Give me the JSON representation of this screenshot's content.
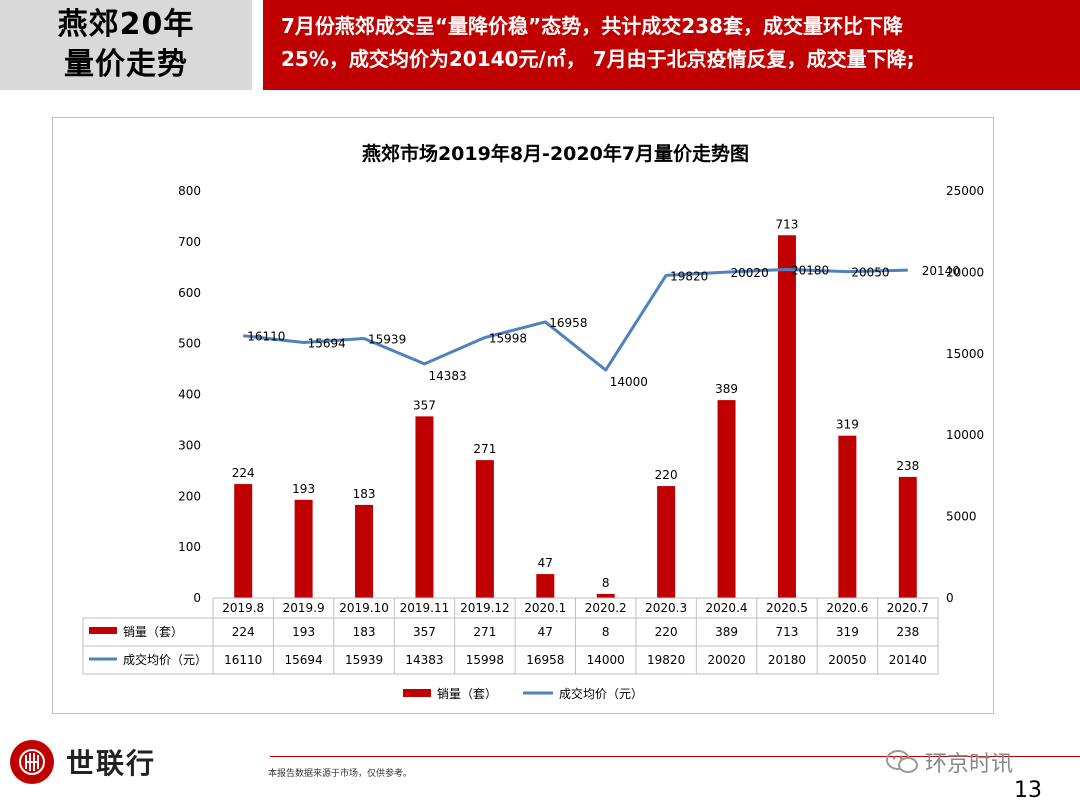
{
  "header": {
    "title_line1": "燕郊20年",
    "title_line2": "量价走势",
    "headline_line1": "7月份燕郊成交呈“量降价稳”态势，共计成交238套，成交量环比下降",
    "headline_line2": "25%，成交均价为20140元/㎡， 7月由于北京疫情反复，成交量下降;"
  },
  "colors": {
    "bar": "#c00000",
    "line": "#4f81bd",
    "accent": "#c00000"
  },
  "chart_data": {
    "type": "bar",
    "title": "燕郊市场2019年8月-2020年7月量价走势图",
    "categories": [
      "2019.8",
      "2019.9",
      "2019.10",
      "2019.11",
      "2019.12",
      "2020.1",
      "2020.2",
      "2020.3",
      "2020.4",
      "2020.5",
      "2020.6",
      "2020.7"
    ],
    "series": [
      {
        "name": "销量（套）",
        "type": "bar",
        "axis": "left",
        "values": [
          224,
          193,
          183,
          357,
          271,
          47,
          8,
          220,
          389,
          713,
          319,
          238
        ]
      },
      {
        "name": "成交均价（元）",
        "type": "line",
        "axis": "right",
        "values": [
          16110,
          15694,
          15939,
          14383,
          15998,
          16958,
          14000,
          19820,
          20020,
          20180,
          20050,
          20140
        ]
      }
    ],
    "y_left": {
      "min": 0,
      "max": 800,
      "ticks": [
        "0",
        "100",
        "200",
        "300",
        "400",
        "500",
        "600",
        "700",
        "800"
      ]
    },
    "y_right": {
      "min": 0,
      "max": 25000,
      "ticks": [
        "0",
        "5000",
        "10000",
        "15000",
        "20000",
        "25000"
      ]
    },
    "grid": false,
    "legend": "bottom",
    "data_table": true
  },
  "footer": {
    "logo_text": "世联行",
    "note": "本报告数据来源于市场，仅供参考。",
    "wechat_name": "环京时讯",
    "page_number": "13",
    "logo_icon": "company-logo-icon",
    "wechat_icon": "wechat-icon"
  }
}
